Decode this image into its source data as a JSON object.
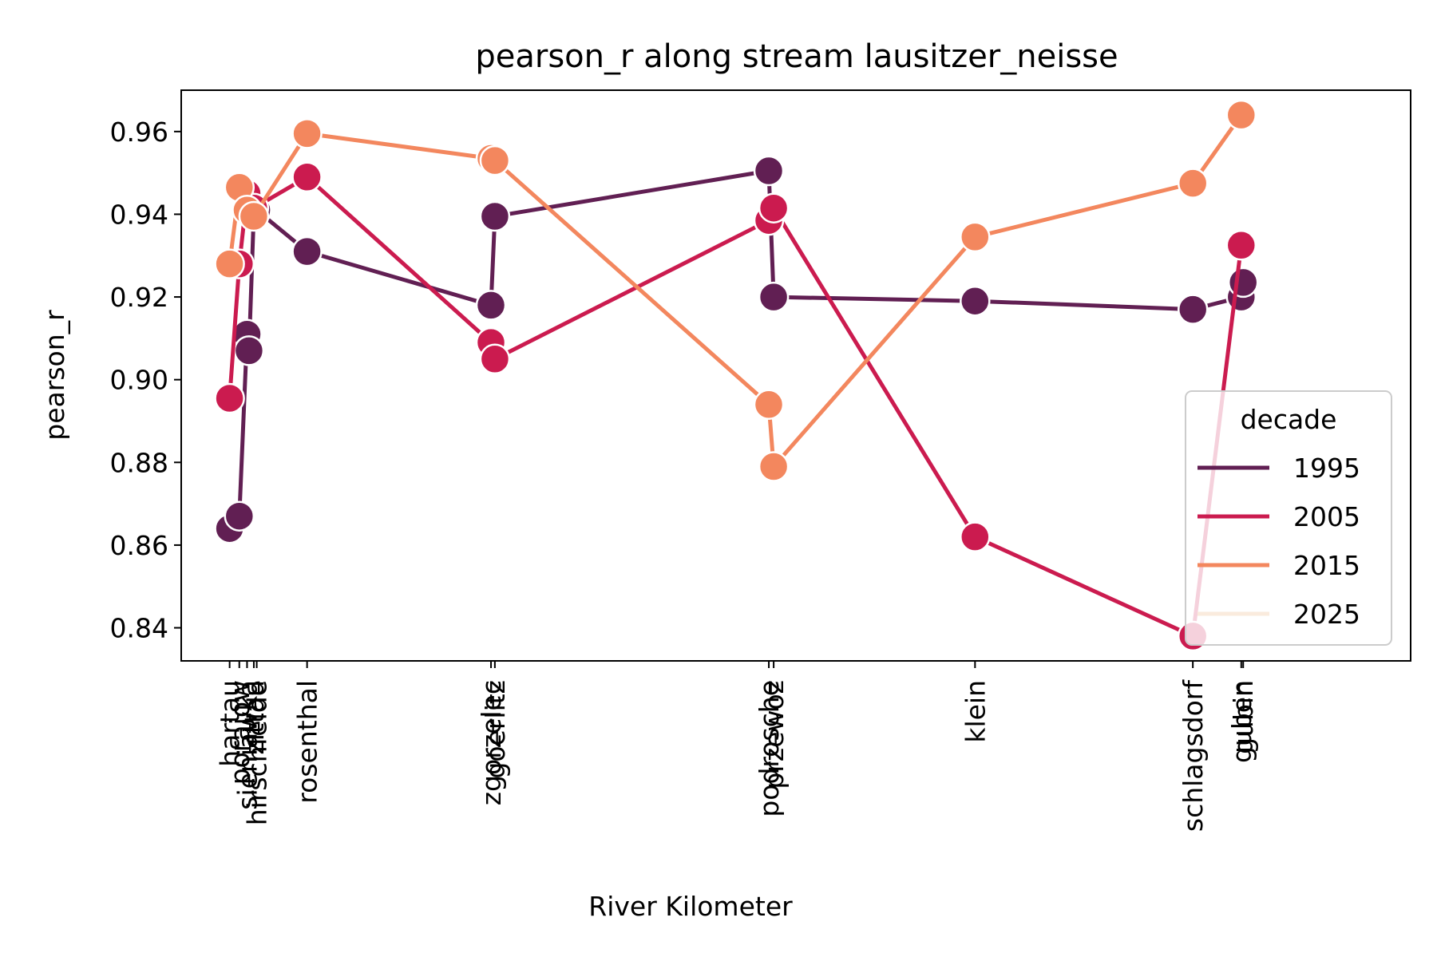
{
  "chart_data": {
    "type": "line",
    "title": "pearson_r along stream lausitzer_neisse",
    "xlabel": "River Kilometer",
    "ylabel": "pearson_r",
    "ylim": [
      0.832,
      0.97
    ],
    "yticks": [
      "0.84",
      "0.86",
      "0.88",
      "0.90",
      "0.92",
      "0.94",
      "0.96"
    ],
    "xlim": [
      -5,
      122
    ],
    "station_ticks": [
      {
        "label": "hartau",
        "km": 0
      },
      {
        "label": "porajow",
        "km": 1
      },
      {
        "label": "sieniawka",
        "km": 1.8
      },
      {
        "label": "zittau",
        "km": 2.5
      },
      {
        "label": "hirschfelde",
        "km": 2.8
      },
      {
        "label": "rosenthal",
        "km": 8
      },
      {
        "label": "zgorzelec",
        "km": 27
      },
      {
        "label": "goerlitz",
        "km": 27.4
      },
      {
        "label": "podrosche",
        "km": 55.7
      },
      {
        "label": "przewoz",
        "km": 56.2
      },
      {
        "label": "klein",
        "km": 77
      },
      {
        "label": "schlagsdorf",
        "km": 99.5
      },
      {
        "label": "guben",
        "km": 104.5
      },
      {
        "label": "gubin",
        "km": 104.7
      }
    ],
    "legend": {
      "title": "decade",
      "placement": "lower-right"
    },
    "series": [
      {
        "name": "1995",
        "color": "#611f53",
        "points": [
          [
            0,
            0.864
          ],
          [
            1,
            0.867
          ],
          [
            1.8,
            0.911
          ],
          [
            2,
            0.907
          ],
          [
            2.5,
            0.94
          ],
          [
            2.8,
            0.941
          ],
          [
            8,
            0.931
          ],
          [
            27,
            0.918
          ],
          [
            27.4,
            0.9395
          ],
          [
            55.7,
            0.9505
          ],
          [
            56.2,
            0.92
          ],
          [
            77,
            0.919
          ],
          [
            99.5,
            0.917
          ],
          [
            104.5,
            0.92
          ],
          [
            104.7,
            0.9235
          ]
        ]
      },
      {
        "name": "2005",
        "color": "#cb1b4f",
        "points": [
          [
            0,
            0.8955
          ],
          [
            1,
            0.928
          ],
          [
            1.8,
            0.945
          ],
          [
            2.5,
            0.9415
          ],
          [
            8,
            0.949
          ],
          [
            27,
            0.909
          ],
          [
            27.4,
            0.905
          ],
          [
            55.7,
            0.9385
          ],
          [
            56.2,
            0.9415
          ],
          [
            77,
            0.862
          ],
          [
            99.5,
            0.838
          ],
          [
            104.5,
            0.9325
          ]
        ]
      },
      {
        "name": "2015",
        "color": "#f3875e",
        "points": [
          [
            0,
            0.928
          ],
          [
            1,
            0.9465
          ],
          [
            1.8,
            0.941
          ],
          [
            2.5,
            0.9395
          ],
          [
            8,
            0.9595
          ],
          [
            27,
            0.9535
          ],
          [
            27.4,
            0.953
          ],
          [
            55.7,
            0.894
          ],
          [
            56.2,
            0.879
          ],
          [
            77,
            0.9345
          ],
          [
            99.5,
            0.9475
          ],
          [
            104.5,
            0.964
          ]
        ]
      },
      {
        "name": "2025",
        "color": "#faebdd",
        "points": []
      }
    ]
  }
}
